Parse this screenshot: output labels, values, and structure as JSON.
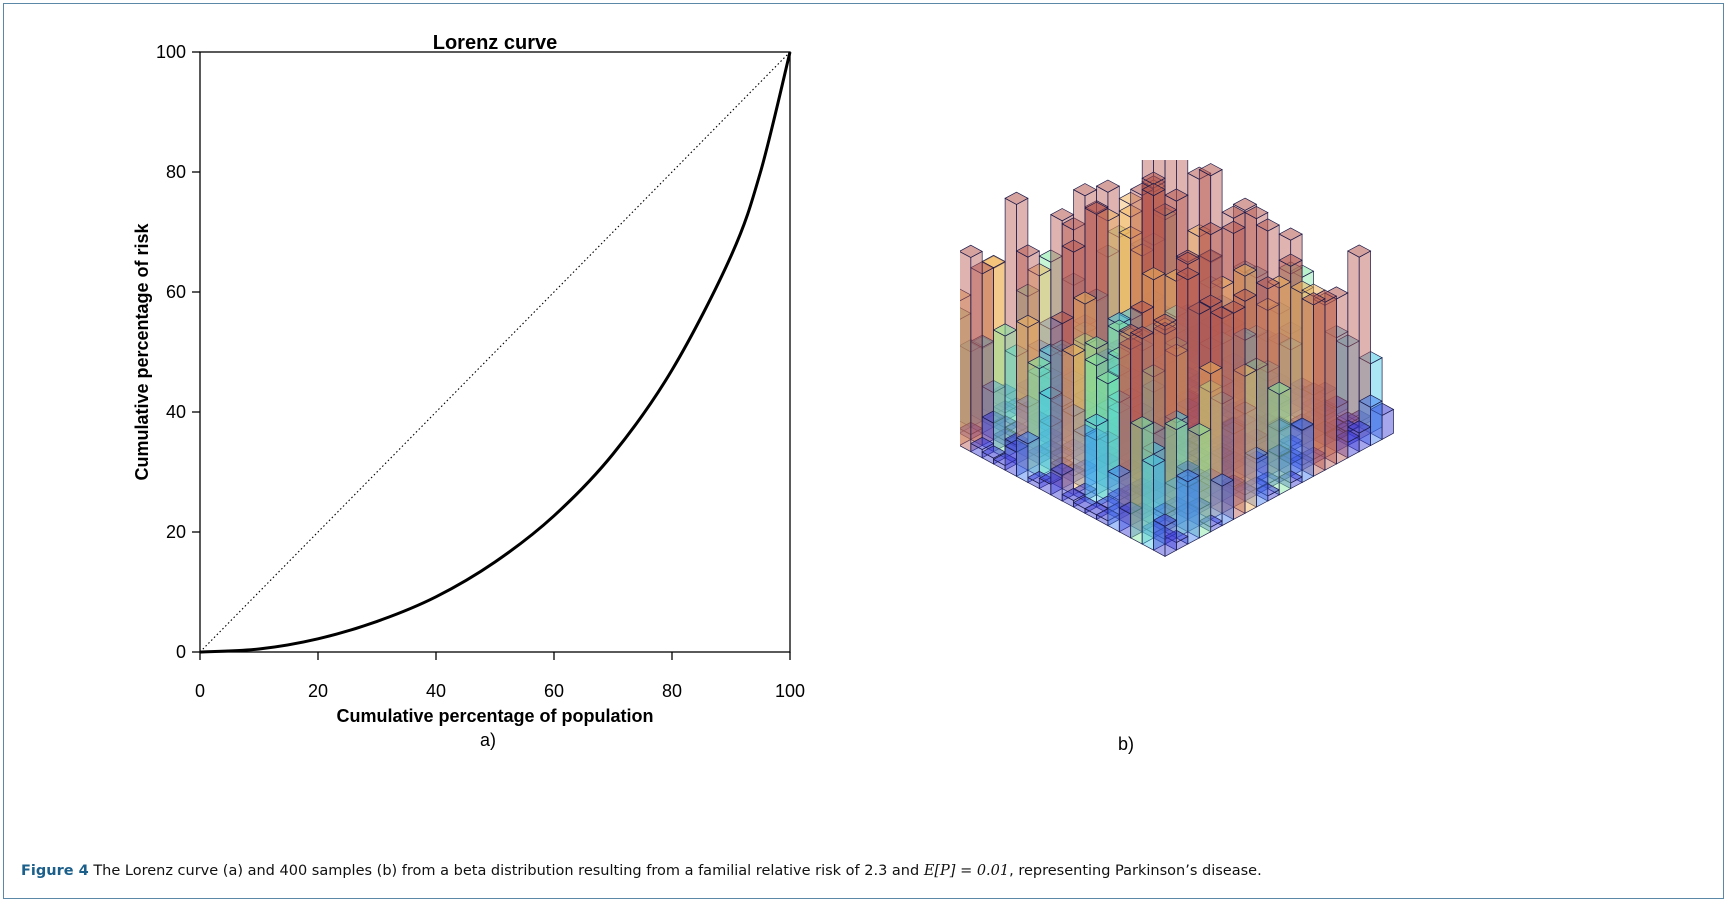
{
  "chart_data": [
    {
      "type": "line",
      "title": "Lorenz curve",
      "xlabel": "Cumulative percentage of population",
      "ylabel": "Cumulative percentage of risk",
      "xlim": [
        0,
        100
      ],
      "ylim": [
        0,
        100
      ],
      "x_ticks": [
        "0",
        "20",
        "40",
        "60",
        "80",
        "100"
      ],
      "y_ticks": [
        "0",
        "20",
        "40",
        "60",
        "80",
        "100"
      ],
      "grid": false,
      "series": [
        {
          "style": "solid",
          "x": [
            0,
            10,
            20,
            30,
            40,
            50,
            60,
            70,
            80,
            90,
            95,
            100
          ],
          "y": [
            0,
            0.5,
            2.2,
            5.1,
            9.2,
            15,
            22.7,
            33,
            47,
            66,
            80,
            100
          ]
        },
        {
          "style": "dotted",
          "x": [
            0,
            100
          ],
          "y": [
            0,
            100
          ]
        }
      ]
    },
    {
      "type": "bar3d",
      "description_samples": 400,
      "grid_size": [
        20,
        20
      ],
      "colormap": [
        "#3a3ad6",
        "#3f7df0",
        "#45c7e6",
        "#7fe8a0",
        "#f0b25a",
        "#b5564f"
      ]
    }
  ],
  "panels": {
    "a_label": "a)",
    "b_label": "b)"
  },
  "caption": {
    "label": "Figure 4",
    "text_before": "The Lorenz curve (a) and 400 samples (b) from a beta distribution resulting from a familial relative risk of 2.3 and",
    "math": "E[P] = 0.01",
    "text_after": ", representing Parkinson’s disease."
  }
}
